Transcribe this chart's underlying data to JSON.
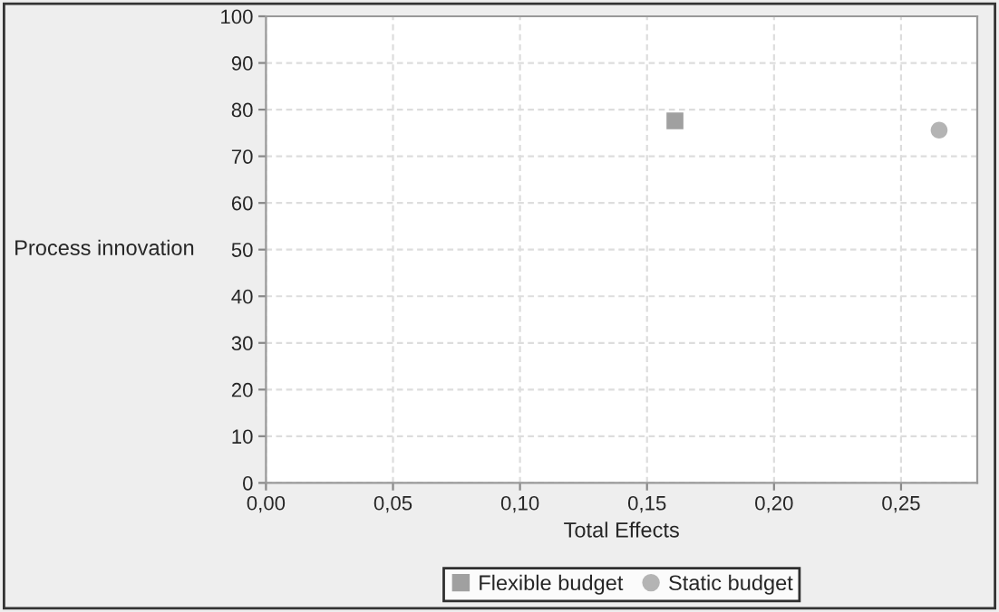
{
  "chart_data": {
    "type": "scatter",
    "xlabel": "Total Effects",
    "ylabel": "Process innovation",
    "series": [
      {
        "name": "Flexible budget",
        "color": "#a0a0a0",
        "marker": "square",
        "x": [
          0.161
        ],
        "values": [
          77.6
        ]
      },
      {
        "name": "Static budget",
        "color": "#b4b4b4",
        "marker": "circle",
        "x": [
          0.265
        ],
        "values": [
          75.6
        ]
      }
    ],
    "xlim": [
      0,
      0.28
    ],
    "xticks": [
      {
        "value": 0,
        "label": "0,00"
      },
      {
        "value": 0.05,
        "label": "0,05"
      },
      {
        "value": 0.1,
        "label": "0,10"
      },
      {
        "value": 0.15,
        "label": "0,15"
      },
      {
        "value": 0.2,
        "label": "0,20"
      },
      {
        "value": 0.25,
        "label": "0,25"
      }
    ],
    "ylim": [
      0,
      100
    ],
    "yticks": [
      0,
      10,
      20,
      30,
      40,
      50,
      60,
      70,
      80,
      90,
      100
    ],
    "grid": true,
    "legend": "bottom"
  }
}
